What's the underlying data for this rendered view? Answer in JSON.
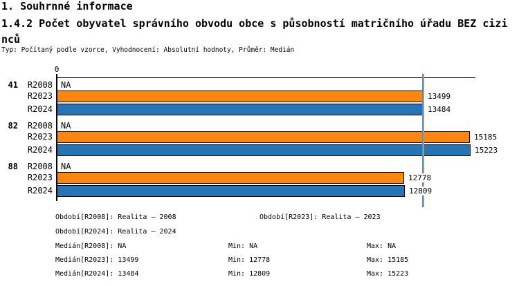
{
  "header": {
    "title": "1. Souhrnné informace",
    "subtitle": "1.4.2 Počet obyvatel správního obvodu obce s působností matričního úřadu BEZ cizinců",
    "meta": "Typ: Počítaný podle vzorce, Vyhodnocení: Absolutní hodnoty, Průměr: Medián"
  },
  "colors": {
    "series_r2023": "#FB870F",
    "series_r2024": "#2474B6",
    "median_r2023": "#F9A048",
    "median_r2024": "#4E93C8",
    "axis": "#000000"
  },
  "chart_data": {
    "type": "bar",
    "orientation": "horizontal",
    "title": "",
    "xlabel": "",
    "ylabel": "",
    "axis_zero_label": "0",
    "na_label": "NA",
    "grid": false,
    "xlim": [
      0,
      15400
    ],
    "categories": [
      "41",
      "82",
      "88"
    ],
    "series": [
      {
        "name": "R2008",
        "values": [
          null,
          null,
          null
        ],
        "color": null
      },
      {
        "name": "R2023",
        "values": [
          13499,
          15185,
          12778
        ],
        "color": "#FB870F"
      },
      {
        "name": "R2024",
        "values": [
          13484,
          15223,
          12809
        ],
        "color": "#2474B6"
      }
    ],
    "value_labels": {
      "R2008": [
        "NA",
        "NA",
        "NA"
      ],
      "R2023": [
        "13499",
        "15185",
        "12778"
      ],
      "R2024": [
        "13484",
        "15223",
        "12809"
      ]
    },
    "median_lines": [
      {
        "series": "R2024",
        "value": 13484,
        "color": "#4E93C8"
      },
      {
        "series": "R2023",
        "value": 13499,
        "color": "#F9A048"
      }
    ]
  },
  "legend": {
    "r2008": "Období[R2008]: Realita – 2008",
    "r2023": "Období[R2023]: Realita – 2023",
    "r2024": "Období[R2024]: Realita – 2024"
  },
  "stats": {
    "rows": [
      {
        "median": "Medián[R2008]: NA",
        "min": "Min: NA",
        "max": "Max: NA"
      },
      {
        "median": "Medián[R2023]: 13499",
        "min": "Min: 12778",
        "max": "Max: 15185"
      },
      {
        "median": "Medián[R2024]: 13484",
        "min": "Min: 12809",
        "max": "Max: 15223"
      }
    ]
  }
}
